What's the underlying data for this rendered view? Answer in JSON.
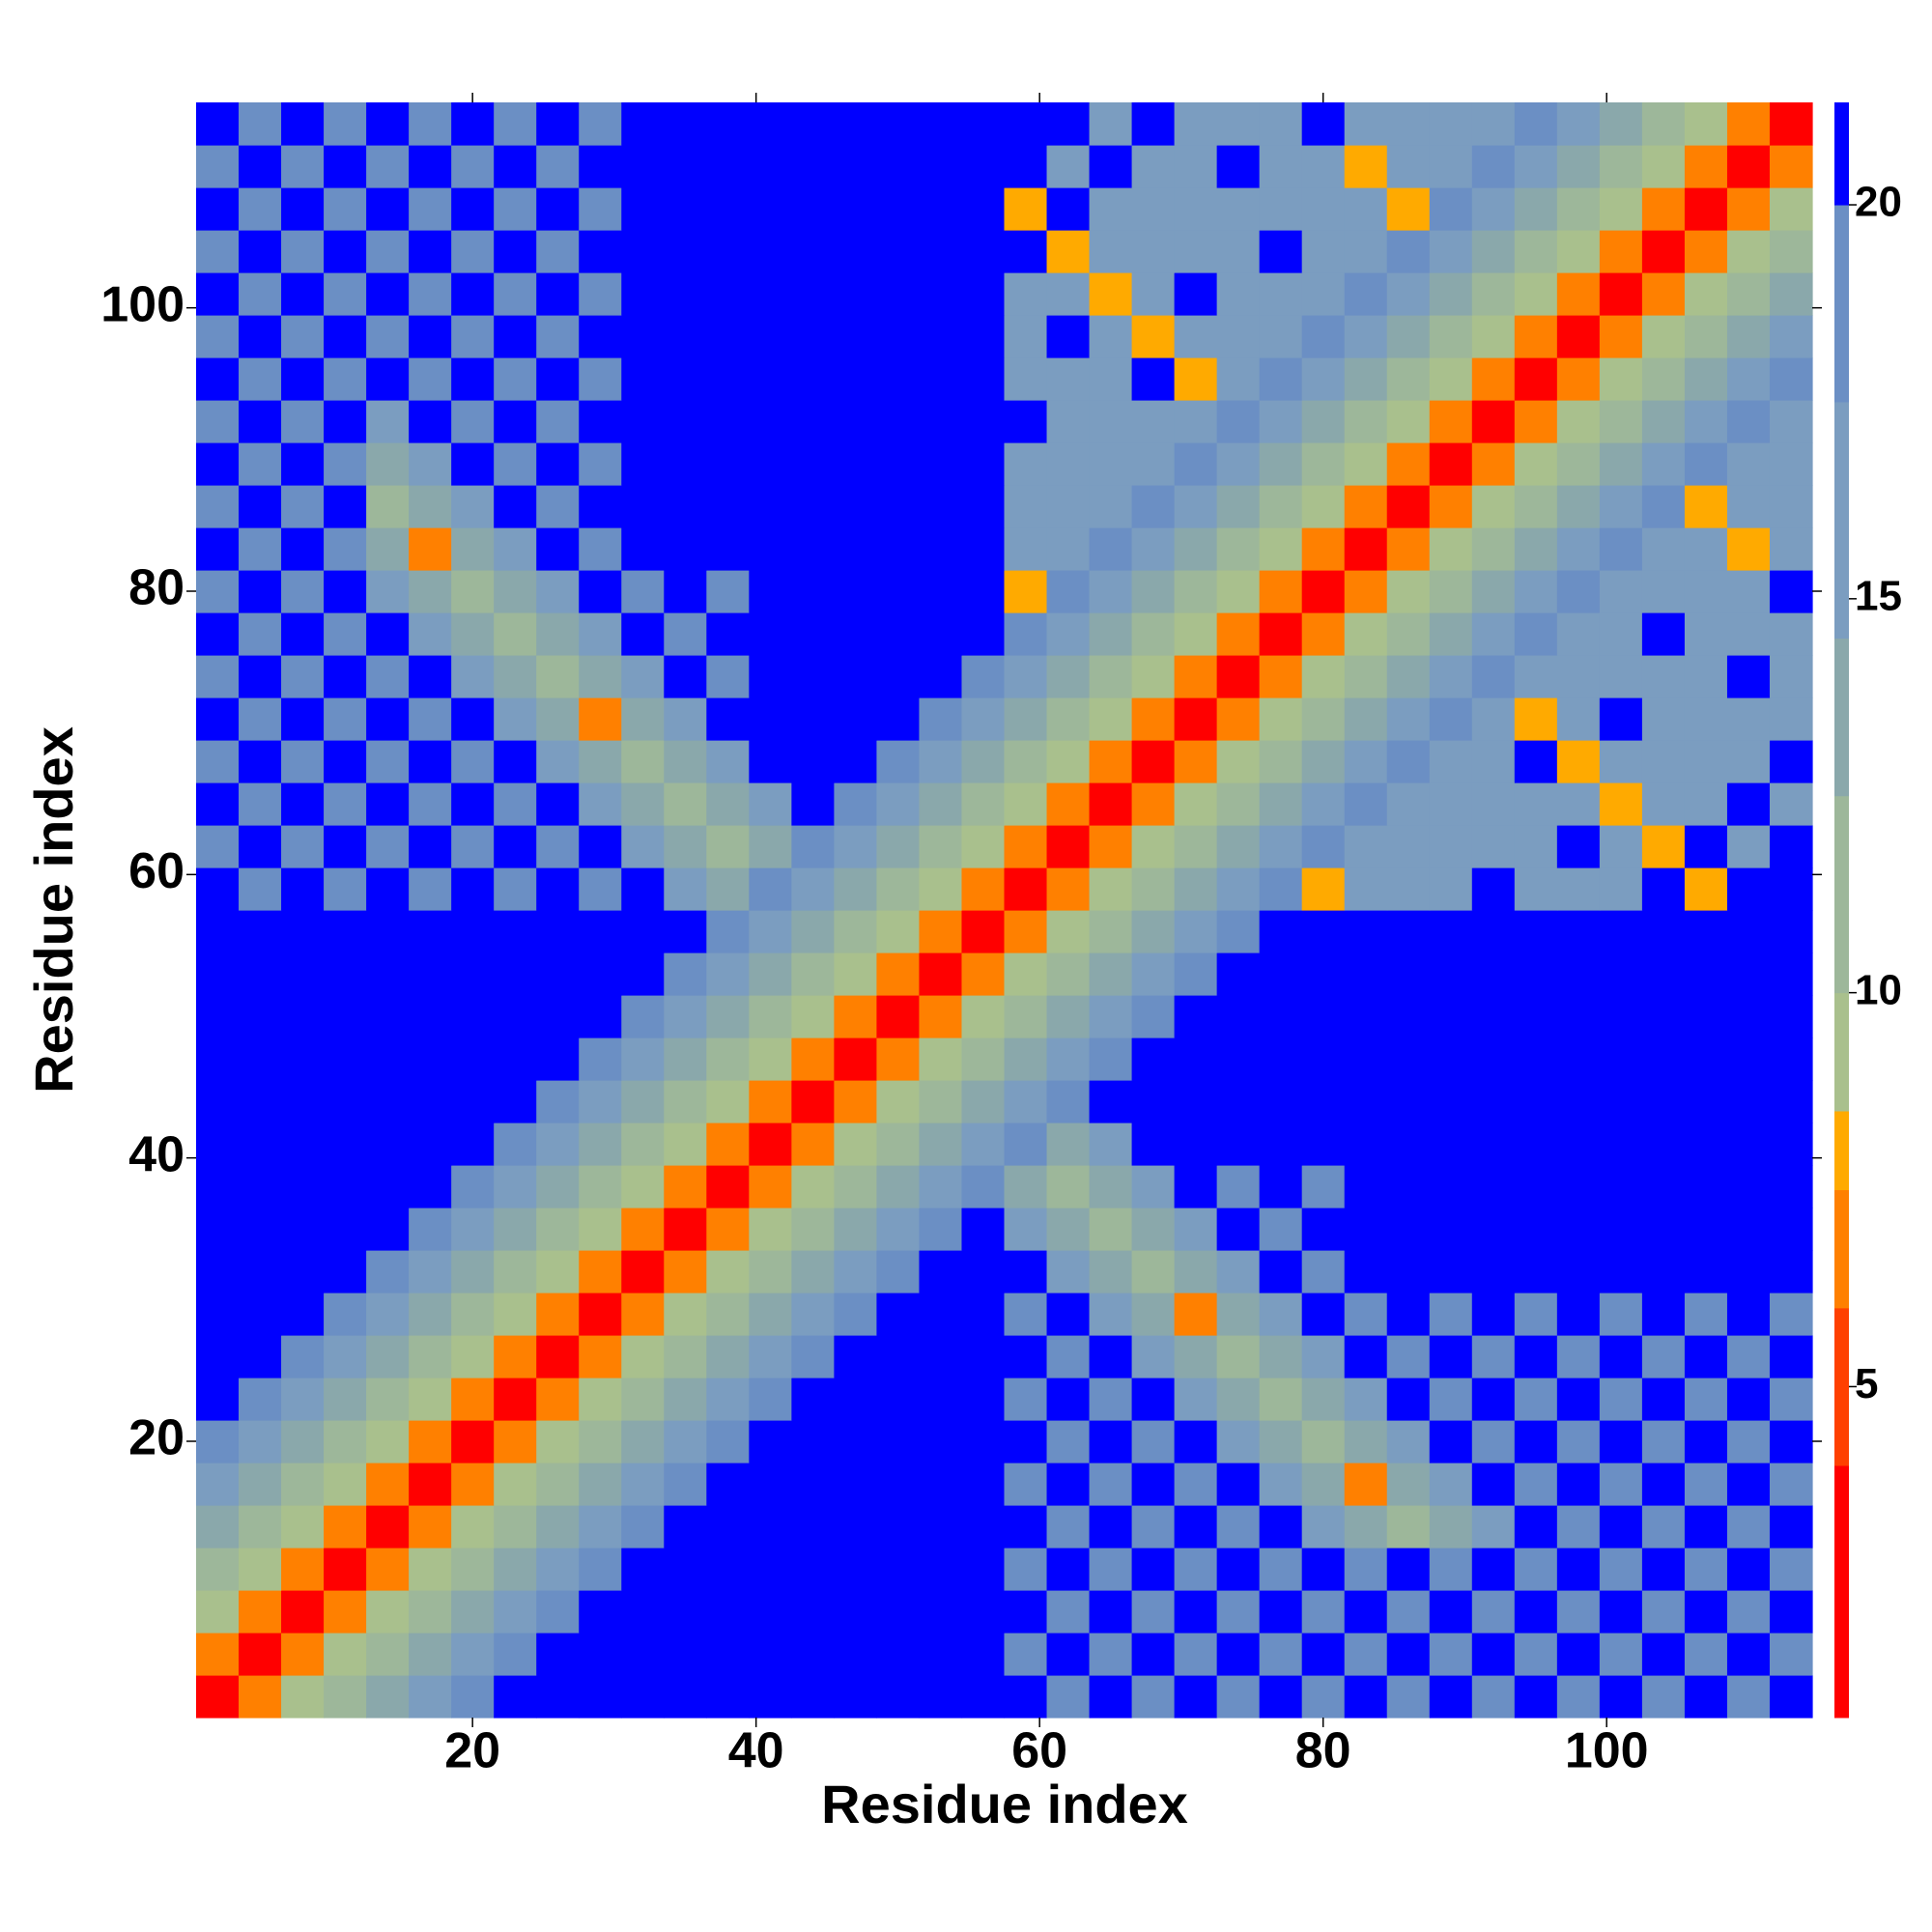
{
  "chart_data": {
    "type": "heatmap",
    "xlabel": "Residue index",
    "ylabel": "Residue index",
    "xlim": [
      0.5,
      114.5
    ],
    "ylim": [
      0.5,
      114.5
    ],
    "xticks": [
      20,
      40,
      60,
      80,
      100
    ],
    "yticks": [
      20,
      40,
      60,
      80,
      100
    ],
    "xbins": [
      0.5,
      3.5,
      6.5,
      9.5,
      12.5,
      15.5,
      18.5,
      21.5,
      24.5,
      27.5,
      30.5,
      33.5,
      36.5,
      39.5,
      42.5,
      45.5,
      48.5,
      51.5,
      54.5,
      57.5,
      60.5,
      63.5,
      66.5,
      69.5,
      72.5,
      75.5,
      78.5,
      81.5,
      84.5,
      87.5,
      90.5,
      93.5,
      96.5,
      99.5,
      102.5,
      105.5,
      108.5,
      111.5,
      114.5
    ],
    "ybins": [
      0.5,
      3.5,
      6.5,
      9.5,
      12.5,
      15.5,
      18.5,
      21.5,
      24.5,
      27.5,
      30.5,
      33.5,
      36.5,
      39.5,
      42.5,
      45.5,
      48.5,
      51.5,
      54.5,
      57.5,
      60.5,
      63.5,
      66.5,
      69.5,
      72.5,
      75.5,
      78.5,
      81.5,
      84.5,
      87.5,
      90.5,
      93.5,
      96.5,
      99.5,
      102.5,
      105.5,
      108.5,
      111.5,
      114.5
    ],
    "values": [
      [
        2,
        6,
        9,
        11,
        13,
        16,
        19,
        21,
        21,
        21,
        21,
        21,
        21,
        21,
        21,
        21,
        21,
        21,
        21,
        21,
        19,
        21,
        19,
        21,
        19,
        21,
        19,
        21,
        19,
        21,
        19,
        21,
        19,
        21,
        19,
        21,
        19,
        21
      ],
      [
        6,
        2,
        6,
        9,
        11,
        13,
        16,
        19,
        21,
        21,
        21,
        21,
        21,
        21,
        21,
        21,
        21,
        21,
        21,
        19,
        21,
        19,
        21,
        19,
        21,
        19,
        21,
        19,
        21,
        19,
        21,
        19,
        21,
        19,
        21,
        19,
        21,
        19
      ],
      [
        9,
        6,
        2,
        6,
        9,
        11,
        13,
        16,
        19,
        21,
        21,
        21,
        21,
        21,
        21,
        21,
        21,
        21,
        21,
        21,
        19,
        21,
        19,
        21,
        19,
        21,
        19,
        21,
        19,
        21,
        19,
        21,
        19,
        21,
        19,
        21,
        19,
        21
      ],
      [
        11,
        9,
        6,
        2,
        6,
        9,
        11,
        13,
        16,
        19,
        21,
        21,
        21,
        21,
        21,
        21,
        21,
        21,
        21,
        19,
        21,
        19,
        21,
        19,
        21,
        19,
        21,
        19,
        21,
        19,
        21,
        19,
        21,
        19,
        21,
        19,
        21,
        19
      ],
      [
        13,
        11,
        9,
        6,
        2,
        6,
        9,
        11,
        13,
        16,
        19,
        21,
        21,
        21,
        21,
        21,
        21,
        21,
        21,
        21,
        19,
        21,
        19,
        21,
        19,
        21,
        17,
        14,
        12,
        14,
        17,
        21,
        19,
        21,
        19,
        21,
        19,
        21
      ],
      [
        16,
        13,
        11,
        9,
        6,
        2,
        6,
        9,
        11,
        13,
        16,
        19,
        21,
        21,
        21,
        21,
        21,
        21,
        21,
        19,
        21,
        19,
        21,
        19,
        21,
        17,
        14,
        7,
        14,
        17,
        21,
        19,
        21,
        19,
        21,
        19,
        21,
        19
      ],
      [
        19,
        16,
        13,
        11,
        9,
        6,
        2,
        6,
        9,
        11,
        13,
        16,
        19,
        21,
        21,
        21,
        21,
        21,
        21,
        21,
        19,
        21,
        19,
        21,
        17,
        14,
        12,
        14,
        17,
        21,
        19,
        21,
        19,
        21,
        19,
        21,
        19,
        21
      ],
      [
        21,
        19,
        16,
        13,
        11,
        9,
        6,
        2,
        6,
        9,
        11,
        13,
        16,
        19,
        21,
        21,
        21,
        21,
        21,
        19,
        21,
        19,
        21,
        17,
        14,
        12,
        14,
        17,
        21,
        19,
        21,
        19,
        21,
        19,
        21,
        19,
        21,
        19
      ],
      [
        21,
        21,
        19,
        16,
        13,
        11,
        9,
        6,
        2,
        6,
        9,
        11,
        13,
        16,
        19,
        21,
        21,
        21,
        21,
        21,
        19,
        21,
        17,
        14,
        12,
        14,
        17,
        21,
        19,
        21,
        19,
        21,
        19,
        21,
        19,
        21,
        19,
        21
      ],
      [
        21,
        21,
        21,
        19,
        16,
        13,
        11,
        9,
        6,
        2,
        6,
        9,
        11,
        13,
        16,
        19,
        21,
        21,
        21,
        19,
        21,
        17,
        14,
        7,
        14,
        17,
        21,
        19,
        21,
        19,
        21,
        19,
        21,
        19,
        21,
        19,
        21,
        19
      ],
      [
        21,
        21,
        21,
        21,
        19,
        16,
        13,
        11,
        9,
        6,
        2,
        6,
        9,
        11,
        13,
        16,
        19,
        21,
        21,
        21,
        17,
        14,
        12,
        14,
        17,
        21,
        19,
        21,
        21,
        21,
        21,
        21,
        21,
        21,
        21,
        21,
        21,
        21
      ],
      [
        21,
        21,
        21,
        21,
        21,
        19,
        16,
        13,
        11,
        9,
        6,
        2,
        6,
        9,
        11,
        13,
        16,
        19,
        21,
        17,
        14,
        12,
        14,
        17,
        21,
        19,
        21,
        21,
        21,
        21,
        21,
        21,
        21,
        21,
        21,
        21,
        21,
        21
      ],
      [
        21,
        21,
        21,
        21,
        21,
        21,
        19,
        16,
        13,
        11,
        9,
        6,
        2,
        6,
        9,
        11,
        13,
        16,
        19,
        14,
        12,
        14,
        17,
        21,
        19,
        21,
        19,
        21,
        21,
        21,
        21,
        21,
        21,
        21,
        21,
        21,
        21,
        21
      ],
      [
        21,
        21,
        21,
        21,
        21,
        21,
        21,
        19,
        16,
        13,
        11,
        9,
        6,
        2,
        6,
        9,
        11,
        13,
        16,
        19,
        14,
        17,
        21,
        21,
        21,
        21,
        21,
        21,
        21,
        21,
        21,
        21,
        21,
        21,
        21,
        21,
        21,
        21
      ],
      [
        21,
        21,
        21,
        21,
        21,
        21,
        21,
        21,
        19,
        16,
        13,
        11,
        9,
        6,
        2,
        6,
        9,
        11,
        13,
        16,
        19,
        21,
        21,
        21,
        21,
        21,
        21,
        21,
        21,
        21,
        21,
        21,
        21,
        21,
        21,
        21,
        21,
        21
      ],
      [
        21,
        21,
        21,
        21,
        21,
        21,
        21,
        21,
        21,
        19,
        16,
        13,
        11,
        9,
        6,
        2,
        6,
        9,
        11,
        13,
        16,
        19,
        21,
        21,
        21,
        21,
        21,
        21,
        21,
        21,
        21,
        21,
        21,
        21,
        21,
        21,
        21,
        21
      ],
      [
        21,
        21,
        21,
        21,
        21,
        21,
        21,
        21,
        21,
        21,
        19,
        16,
        13,
        11,
        9,
        6,
        2,
        6,
        9,
        11,
        13,
        16,
        19,
        21,
        21,
        21,
        21,
        21,
        21,
        21,
        21,
        21,
        21,
        21,
        21,
        21,
        21,
        21
      ],
      [
        21,
        21,
        21,
        21,
        21,
        21,
        21,
        21,
        21,
        21,
        21,
        19,
        16,
        13,
        11,
        9,
        6,
        2,
        6,
        9,
        11,
        13,
        16,
        19,
        21,
        21,
        21,
        21,
        21,
        21,
        21,
        21,
        21,
        21,
        21,
        21,
        21,
        21
      ],
      [
        21,
        21,
        21,
        21,
        21,
        21,
        21,
        21,
        21,
        21,
        21,
        21,
        19,
        16,
        13,
        11,
        9,
        6,
        2,
        6,
        9,
        11,
        13,
        16,
        19,
        21,
        21,
        21,
        21,
        21,
        21,
        21,
        21,
        21,
        21,
        21,
        21,
        21
      ],
      [
        21,
        19,
        21,
        19,
        21,
        19,
        21,
        19,
        21,
        19,
        21,
        17,
        14,
        19,
        16,
        13,
        11,
        9,
        6,
        2,
        6,
        9,
        11,
        13,
        16,
        19,
        8,
        15,
        15,
        15,
        21,
        15,
        15,
        15,
        21,
        8,
        21,
        21
      ],
      [
        19,
        21,
        19,
        21,
        19,
        21,
        19,
        21,
        19,
        21,
        17,
        14,
        12,
        14,
        19,
        16,
        13,
        11,
        9,
        6,
        2,
        6,
        9,
        11,
        13,
        16,
        19,
        15,
        15,
        15,
        15,
        15,
        21,
        15,
        8,
        21,
        15,
        21
      ],
      [
        21,
        19,
        21,
        19,
        21,
        19,
        21,
        19,
        21,
        17,
        14,
        12,
        14,
        17,
        21,
        19,
        16,
        13,
        11,
        9,
        6,
        2,
        6,
        9,
        11,
        13,
        16,
        19,
        15,
        15,
        15,
        15,
        15,
        8,
        15,
        15,
        21,
        15
      ],
      [
        19,
        21,
        19,
        21,
        19,
        21,
        19,
        21,
        17,
        14,
        12,
        14,
        17,
        21,
        21,
        21,
        19,
        16,
        13,
        11,
        9,
        6,
        2,
        6,
        9,
        11,
        13,
        16,
        19,
        15,
        15,
        21,
        8,
        15,
        15,
        15,
        15,
        21
      ],
      [
        21,
        19,
        21,
        19,
        21,
        19,
        21,
        17,
        14,
        7,
        14,
        17,
        21,
        21,
        21,
        21,
        21,
        19,
        16,
        13,
        11,
        9,
        6,
        2,
        6,
        9,
        11,
        13,
        16,
        19,
        15,
        8,
        15,
        21,
        15,
        15,
        15,
        15
      ],
      [
        19,
        21,
        19,
        21,
        19,
        21,
        17,
        14,
        12,
        14,
        17,
        21,
        19,
        21,
        21,
        21,
        21,
        21,
        19,
        16,
        13,
        11,
        9,
        6,
        2,
        6,
        9,
        11,
        13,
        16,
        19,
        15,
        15,
        15,
        15,
        15,
        21,
        15
      ],
      [
        21,
        19,
        21,
        19,
        21,
        17,
        14,
        12,
        14,
        17,
        21,
        19,
        21,
        21,
        21,
        21,
        21,
        21,
        21,
        19,
        16,
        13,
        11,
        9,
        6,
        2,
        6,
        9,
        11,
        13,
        16,
        19,
        15,
        15,
        21,
        15,
        15,
        15
      ],
      [
        19,
        21,
        19,
        21,
        17,
        14,
        12,
        14,
        17,
        21,
        19,
        21,
        19,
        21,
        21,
        21,
        21,
        21,
        21,
        8,
        19,
        16,
        13,
        11,
        9,
        6,
        2,
        6,
        9,
        11,
        13,
        16,
        19,
        15,
        15,
        15,
        15,
        21
      ],
      [
        21,
        19,
        21,
        19,
        14,
        7,
        14,
        17,
        21,
        19,
        21,
        21,
        21,
        21,
        21,
        21,
        21,
        21,
        21,
        15,
        15,
        19,
        16,
        13,
        11,
        9,
        6,
        2,
        6,
        9,
        11,
        13,
        16,
        19,
        15,
        15,
        8,
        15
      ],
      [
        19,
        21,
        19,
        21,
        12,
        14,
        17,
        21,
        19,
        21,
        21,
        21,
        21,
        21,
        21,
        21,
        21,
        21,
        21,
        15,
        15,
        15,
        19,
        16,
        13,
        11,
        9,
        6,
        2,
        6,
        9,
        11,
        13,
        16,
        19,
        8,
        15,
        15
      ],
      [
        21,
        19,
        21,
        19,
        14,
        17,
        21,
        19,
        21,
        19,
        21,
        21,
        21,
        21,
        21,
        21,
        21,
        21,
        21,
        15,
        15,
        15,
        15,
        19,
        16,
        13,
        11,
        9,
        6,
        2,
        6,
        9,
        11,
        13,
        16,
        19,
        15,
        15
      ],
      [
        19,
        21,
        19,
        21,
        17,
        21,
        19,
        21,
        19,
        21,
        21,
        21,
        21,
        21,
        21,
        21,
        21,
        21,
        21,
        21,
        15,
        15,
        15,
        15,
        19,
        16,
        13,
        11,
        9,
        6,
        2,
        6,
        9,
        11,
        13,
        16,
        19,
        15
      ],
      [
        21,
        19,
        21,
        19,
        21,
        19,
        21,
        19,
        21,
        19,
        21,
        21,
        21,
        21,
        21,
        21,
        21,
        21,
        21,
        15,
        15,
        15,
        21,
        8,
        15,
        19,
        16,
        13,
        11,
        9,
        6,
        2,
        6,
        9,
        11,
        13,
        16,
        19
      ],
      [
        19,
        21,
        19,
        21,
        19,
        21,
        19,
        21,
        19,
        21,
        21,
        21,
        21,
        21,
        21,
        21,
        21,
        21,
        21,
        15,
        21,
        15,
        8,
        15,
        15,
        15,
        19,
        16,
        13,
        11,
        9,
        6,
        2,
        6,
        9,
        11,
        13,
        16
      ],
      [
        21,
        19,
        21,
        19,
        21,
        19,
        21,
        19,
        21,
        19,
        21,
        21,
        21,
        21,
        21,
        21,
        21,
        21,
        21,
        15,
        15,
        8,
        15,
        21,
        15,
        15,
        15,
        19,
        16,
        13,
        11,
        9,
        6,
        2,
        6,
        9,
        11,
        13
      ],
      [
        19,
        21,
        19,
        21,
        19,
        21,
        19,
        21,
        19,
        21,
        21,
        21,
        21,
        21,
        21,
        21,
        21,
        21,
        21,
        21,
        8,
        15,
        15,
        15,
        15,
        21,
        15,
        15,
        19,
        16,
        13,
        11,
        9,
        6,
        2,
        6,
        9,
        11
      ],
      [
        21,
        19,
        21,
        19,
        21,
        19,
        21,
        19,
        21,
        19,
        21,
        21,
        21,
        21,
        21,
        21,
        21,
        21,
        21,
        8,
        21,
        15,
        15,
        15,
        15,
        15,
        15,
        15,
        8,
        19,
        16,
        13,
        11,
        9,
        6,
        2,
        6,
        9
      ],
      [
        19,
        21,
        19,
        21,
        19,
        21,
        19,
        21,
        19,
        21,
        21,
        21,
        21,
        21,
        21,
        21,
        21,
        21,
        21,
        21,
        15,
        21,
        15,
        15,
        21,
        15,
        15,
        8,
        15,
        15,
        19,
        16,
        13,
        11,
        9,
        6,
        2,
        6
      ],
      [
        21,
        19,
        21,
        19,
        21,
        19,
        21,
        19,
        21,
        19,
        21,
        21,
        21,
        21,
        21,
        21,
        21,
        21,
        21,
        21,
        21,
        15,
        21,
        15,
        15,
        15,
        21,
        15,
        15,
        15,
        15,
        19,
        16,
        13,
        11,
        9,
        6,
        2
      ]
    ],
    "colorbar": {
      "lim": [
        0.8,
        21.3
      ],
      "ticks": [
        5,
        10,
        15,
        20
      ],
      "bounds": [
        0.8,
        4,
        6,
        7.5,
        8.5,
        10,
        12.5,
        14.5,
        17.5,
        20,
        21.3
      ],
      "colors": [
        "#ff0000",
        "#ff4000",
        "#ff8000",
        "#ffaa00",
        "#a9c08d",
        "#9db79a",
        "#8aa8ab",
        "#7b9dc0",
        "#6b8fc4",
        "#0000ff"
      ]
    }
  }
}
